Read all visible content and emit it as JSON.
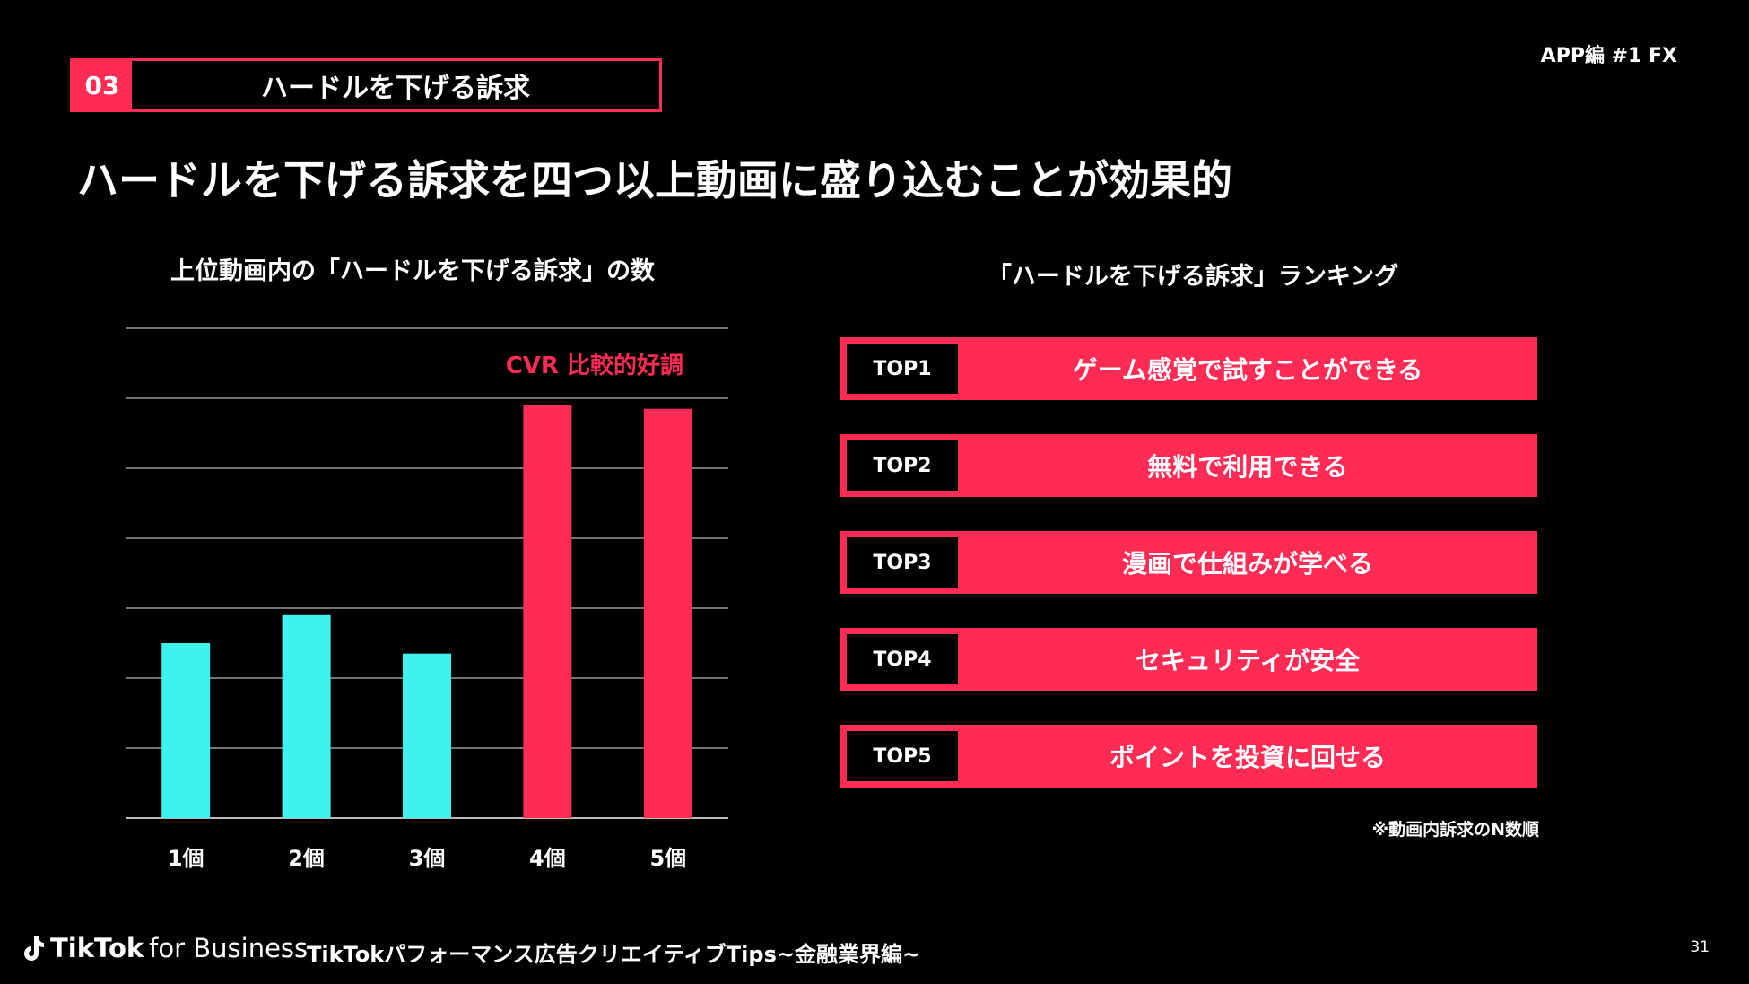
{
  "section": {
    "number": "03",
    "title": "ハードルを下げる訴求"
  },
  "corner_tag": "APP編 #1 FX",
  "headline": "ハードルを下げる訴求を四つ以上動画に盛り込むことが効果的",
  "chart_data": {
    "type": "bar",
    "title": "上位動画内の「ハードルを下げる訴求」の数",
    "categories": [
      "1個",
      "2個",
      "3個",
      "4個",
      "5個"
    ],
    "values": [
      2.5,
      2.9,
      2.35,
      5.9,
      5.85
    ],
    "ylim": [
      0,
      7
    ],
    "grid": true,
    "annotation": "CVR 比較的好調",
    "colors": {
      "normal": "#3ef2ee",
      "highlight": "#fe2c55"
    },
    "highlight_categories": [
      "4個",
      "5個"
    ]
  },
  "ranking": {
    "title": "「ハードルを下げる訴求」ランキング",
    "items": [
      {
        "rank": "TOP1",
        "text": "ゲーム感覚で試すことができる"
      },
      {
        "rank": "TOP2",
        "text": "無料で利用できる"
      },
      {
        "rank": "TOP3",
        "text": "漫画で仕組みが学べる"
      },
      {
        "rank": "TOP4",
        "text": "セキュリティが安全"
      },
      {
        "rank": "TOP5",
        "text": "ポイントを投資に回せる"
      }
    ],
    "note": "※動画内訴求のN数順"
  },
  "footer": {
    "brand": "TikTok",
    "brand_suffix": "for Business",
    "subtitle": "TikTokパフォーマンス広告クリエイティブTips~金融業界編~",
    "page": "31"
  }
}
